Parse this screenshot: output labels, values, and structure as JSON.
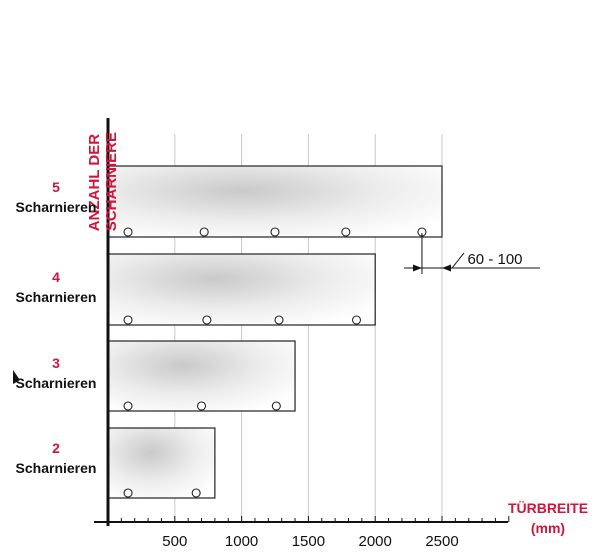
{
  "y_axis_title": [
    "ANZAHL DER",
    "SCHARNIERE"
  ],
  "x_axis_title": [
    "TÜRBREITE",
    "(mm)"
  ],
  "gap_annotation": "60 - 100",
  "colors": {
    "accent": "#d1143a",
    "text": "#111111",
    "grid": "#c8c8c8"
  },
  "chart_data": {
    "type": "bar",
    "orientation": "horizontal",
    "categories": [
      {
        "number": "5",
        "label": "Scharnieren"
      },
      {
        "number": "4",
        "label": "Scharnieren"
      },
      {
        "number": "3",
        "label": "Scharnieren"
      },
      {
        "number": "2",
        "label": "Scharnieren"
      }
    ],
    "values": [
      2500,
      2000,
      1400,
      800
    ],
    "hinge_positions": [
      [
        150,
        720,
        1250,
        1780,
        2350
      ],
      [
        150,
        740,
        1280,
        1860
      ],
      [
        150,
        700,
        1260
      ],
      [
        150,
        660
      ]
    ],
    "xlabel": "TÜRBREITE (mm)",
    "ylabel": "ANZAHL DER SCHARNIERE",
    "xticks": [
      "500",
      "1000",
      "1500",
      "2000",
      "2500"
    ],
    "tick_values": [
      500,
      1000,
      1500,
      2000,
      2500
    ],
    "xlim": [
      0,
      3000
    ],
    "grid": true
  }
}
